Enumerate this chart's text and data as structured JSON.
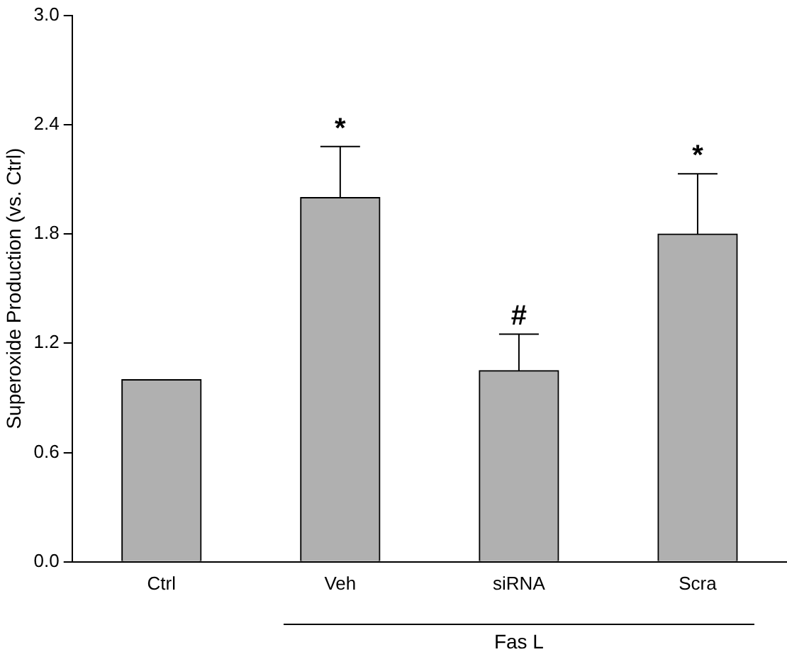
{
  "chart_data": {
    "type": "bar",
    "ylabel": "Superoxide Production (vs. Ctrl)",
    "categories": [
      "Ctrl",
      "Veh",
      "siRNA",
      "Scra"
    ],
    "values": [
      1.0,
      2.0,
      1.05,
      1.8
    ],
    "errors": [
      null,
      0.28,
      0.2,
      0.33
    ],
    "color": "#b0b0b0",
    "ylim": [
      0,
      3
    ],
    "yticks": [
      {
        "value": 0,
        "label": "0.0"
      },
      {
        "value": 0.6,
        "label": "0.6"
      },
      {
        "value": 1.2,
        "label": "1.2"
      },
      {
        "value": 1.8,
        "label": "1.8"
      },
      {
        "value": 2.4,
        "label": "2.4"
      },
      {
        "value": 3,
        "label": "3.0"
      }
    ],
    "grid": false,
    "legend": false,
    "annotations": [
      {
        "text": "*",
        "x": "Veh",
        "y": 2.28
      },
      {
        "text": "#",
        "x": "siRNA",
        "y": 1.25
      },
      {
        "text": "*",
        "x": "Scra",
        "y": 2.13
      },
      "Fas L"
    ]
  }
}
